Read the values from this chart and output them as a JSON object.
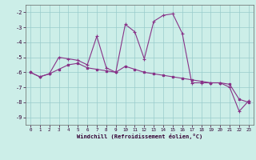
{
  "xlabel": "Windchill (Refroidissement éolien,°C)",
  "background_color": "#cceee8",
  "line_color": "#883388",
  "grid_color": "#99cccc",
  "x_data": [
    0,
    1,
    2,
    3,
    4,
    5,
    6,
    7,
    8,
    9,
    10,
    11,
    12,
    13,
    14,
    15,
    16,
    17,
    18,
    19,
    20,
    21,
    22,
    23
  ],
  "y_jagged": [
    -6.0,
    -6.3,
    -6.1,
    -5.0,
    -5.1,
    -5.2,
    -5.5,
    -3.6,
    -5.7,
    -6.0,
    -2.8,
    -3.3,
    -5.1,
    -2.6,
    -2.2,
    -2.1,
    -3.4,
    -6.7,
    -6.7,
    -6.7,
    -6.7,
    -7.0,
    -8.6,
    -7.9
  ],
  "y_smooth": [
    -6.0,
    -6.3,
    -6.1,
    -5.8,
    -5.5,
    -5.4,
    -5.7,
    -5.8,
    -5.9,
    -6.0,
    -5.6,
    -5.8,
    -6.0,
    -6.1,
    -6.2,
    -6.3,
    -6.4,
    -6.5,
    -6.6,
    -6.7,
    -6.7,
    -6.8,
    -7.8,
    -8.0
  ],
  "ylim": [
    -9.5,
    -1.5
  ],
  "xlim": [
    -0.5,
    23.5
  ],
  "yticks": [
    -9,
    -8,
    -7,
    -6,
    -5,
    -4,
    -3,
    -2
  ],
  "xticks": [
    0,
    1,
    2,
    3,
    4,
    5,
    6,
    7,
    8,
    9,
    10,
    11,
    12,
    13,
    14,
    15,
    16,
    17,
    18,
    19,
    20,
    21,
    22,
    23
  ]
}
